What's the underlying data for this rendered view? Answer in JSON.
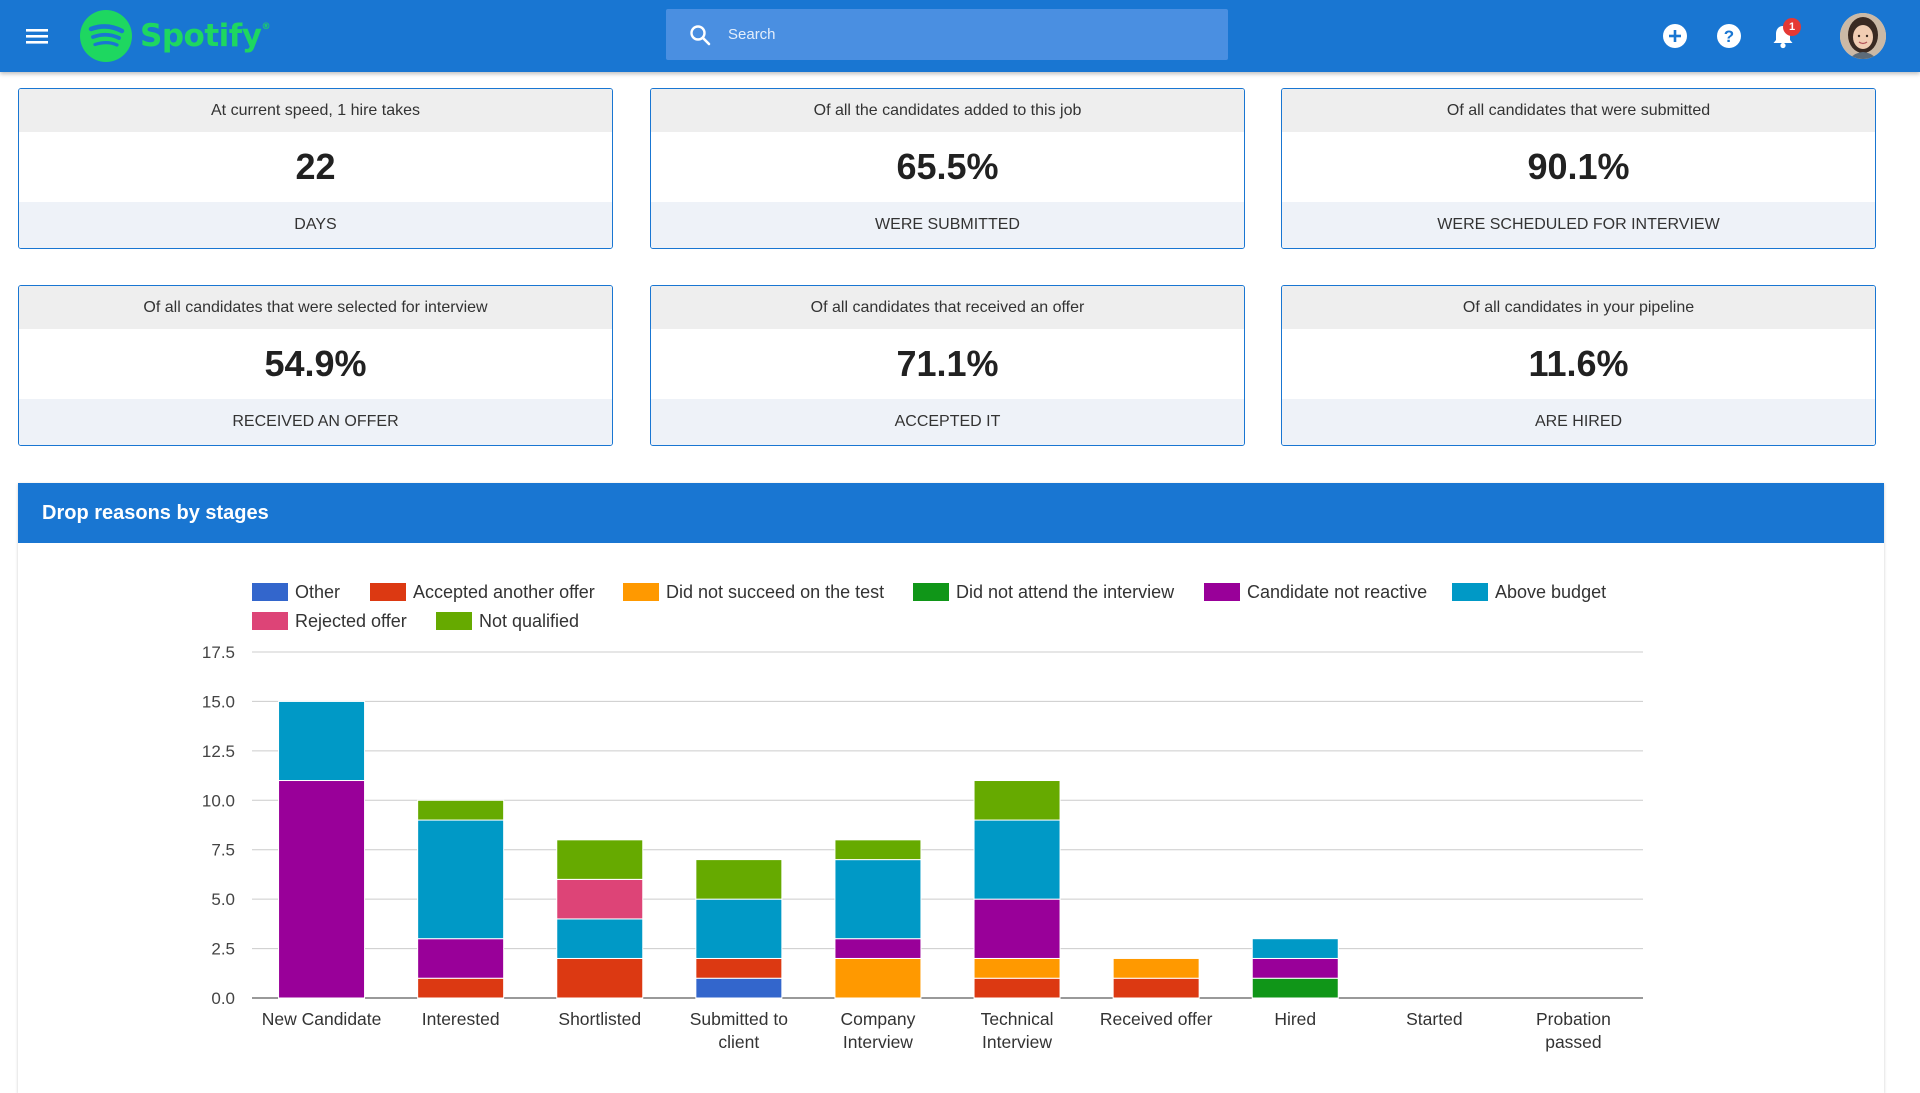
{
  "header": {
    "logo_text": "Spotify",
    "logo_mark": "®",
    "search_placeholder": "Search",
    "notification_count": "1",
    "icons": [
      "menu-icon",
      "search-icon",
      "add-circle-icon",
      "help-icon",
      "bell-icon",
      "avatar"
    ]
  },
  "stats": [
    {
      "top": "At current speed, 1 hire takes",
      "value": "22",
      "bottom": "DAYS"
    },
    {
      "top": "Of all the candidates added to this job",
      "value": "65.5%",
      "bottom": "WERE SUBMITTED"
    },
    {
      "top": "Of all candidates that were submitted",
      "value": "90.1%",
      "bottom": "WERE SCHEDULED FOR INTERVIEW"
    },
    {
      "top": "Of all candidates that were selected for interview",
      "value": "54.9%",
      "bottom": "RECEIVED AN OFFER"
    },
    {
      "top": "Of all candidates that received an offer",
      "value": "71.1%",
      "bottom": "ACCEPTED IT"
    },
    {
      "top": "Of all candidates in your pipeline",
      "value": "11.6%",
      "bottom": "ARE HIRED"
    }
  ],
  "chart_panel": {
    "title": "Drop reasons by stages"
  },
  "colors": {
    "topbar": "#1976d2",
    "spotify_green": "#1ed760"
  },
  "chart_data": {
    "type": "bar",
    "stacked": true,
    "categories": [
      "New Candidate",
      "Interested",
      "Shortlisted",
      "Submitted to client",
      "Company Interview",
      "Technical Interview",
      "Received offer",
      "Hired",
      "Started",
      "Probation passed"
    ],
    "category_lines": [
      [
        "New Candidate"
      ],
      [
        "Interested"
      ],
      [
        "Shortlisted"
      ],
      [
        "Submitted to",
        "client"
      ],
      [
        "Company",
        "Interview"
      ],
      [
        "Technical",
        "Interview"
      ],
      [
        "Received offer"
      ],
      [
        "Hired"
      ],
      [
        "Started"
      ],
      [
        "Probation",
        "passed"
      ]
    ],
    "series": [
      {
        "name": "Other",
        "color": "#3366cc",
        "values": [
          0,
          0,
          0,
          1,
          0,
          0,
          0,
          0,
          0,
          0
        ]
      },
      {
        "name": "Accepted another offer",
        "color": "#dc3912",
        "values": [
          0,
          1,
          2,
          1,
          0,
          1,
          1,
          0,
          0,
          0
        ]
      },
      {
        "name": "Did not succeed on the test",
        "color": "#ff9900",
        "values": [
          0,
          0,
          0,
          0,
          2,
          1,
          1,
          0,
          0,
          0
        ]
      },
      {
        "name": "Did not attend the interview",
        "color": "#109618",
        "values": [
          0,
          0,
          0,
          0,
          0,
          0,
          0,
          1,
          0,
          0
        ]
      },
      {
        "name": "Candidate not reactive",
        "color": "#990099",
        "values": [
          11,
          2,
          0,
          0,
          1,
          3,
          0,
          1,
          0,
          0
        ]
      },
      {
        "name": "Above budget",
        "color": "#0099c6",
        "values": [
          4,
          6,
          2,
          3,
          4,
          4,
          0,
          1,
          0,
          0
        ]
      },
      {
        "name": "Rejected offer",
        "color": "#dd4477",
        "values": [
          0,
          0,
          2,
          0,
          0,
          0,
          0,
          0,
          0,
          0
        ]
      },
      {
        "name": "Not qualified",
        "color": "#66aa00",
        "values": [
          0,
          1,
          2,
          2,
          1,
          2,
          0,
          0,
          0,
          0
        ]
      }
    ],
    "yticks": [
      0,
      2.5,
      5,
      7.5,
      10,
      12.5,
      15,
      17.5
    ],
    "ytick_labels": [
      "0.0",
      "2.5",
      "5.0",
      "7.5",
      "10.0",
      "12.5",
      "15.0",
      "17.5"
    ],
    "ylim": [
      0,
      17.5
    ],
    "grid": true,
    "legend": "top",
    "xlabel": "",
    "ylabel": ""
  }
}
